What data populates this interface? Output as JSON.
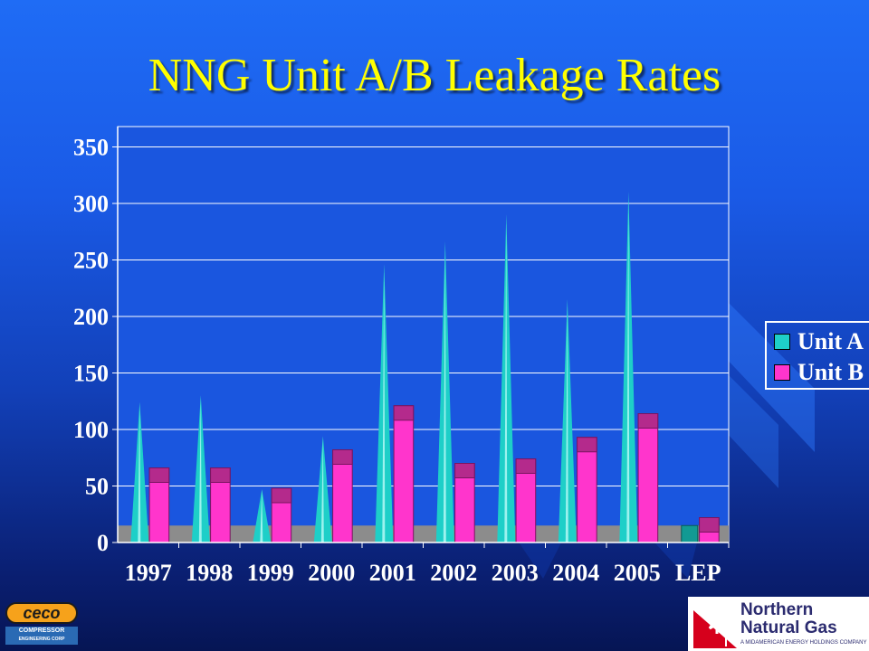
{
  "slide": {
    "title": "NNG Unit A/B Leakage Rates"
  },
  "colors": {
    "unit_a": "#1ecfc8",
    "unit_a_light": "#9cf2ee",
    "unit_b": "#ff35cc",
    "unit_b_cap": "#b42a8c",
    "lep_unit_a": "#129a93",
    "baseline": "#8c8c8c",
    "plot_bg": "#1a56df",
    "title": "#ffff00"
  },
  "chart_data": {
    "type": "bar",
    "title": "NNG Unit A/B Leakage Rates",
    "xlabel": "",
    "ylabel": "",
    "categories": [
      "1997",
      "1998",
      "1999",
      "2000",
      "2001",
      "2002",
      "2003",
      "2004",
      "2005",
      "LEP"
    ],
    "series": [
      {
        "name": "Unit A",
        "values": [
          124,
          130,
          47,
          94,
          246,
          266,
          290,
          215,
          310,
          15
        ]
      },
      {
        "name": "Unit B",
        "values": [
          66,
          66,
          48,
          82,
          121,
          70,
          74,
          93,
          114,
          22
        ]
      }
    ],
    "baseline_band": 15,
    "yticks": [
      0,
      50,
      100,
      150,
      200,
      250,
      300,
      350
    ],
    "ylim": [
      0,
      350
    ],
    "grid": true,
    "legend_position": "right"
  },
  "legend": {
    "unit_a": "Unit A",
    "unit_b": "Unit B"
  },
  "logos": {
    "ceco": {
      "word": "ceco",
      "line1": "COMPRESSOR",
      "line2": "ENGINEERING CORP"
    },
    "nng": {
      "line1": "Northern",
      "line2": "Natural Gas",
      "tagline": "A MIDAMERICAN ENERGY HOLDINGS COMPANY"
    }
  }
}
